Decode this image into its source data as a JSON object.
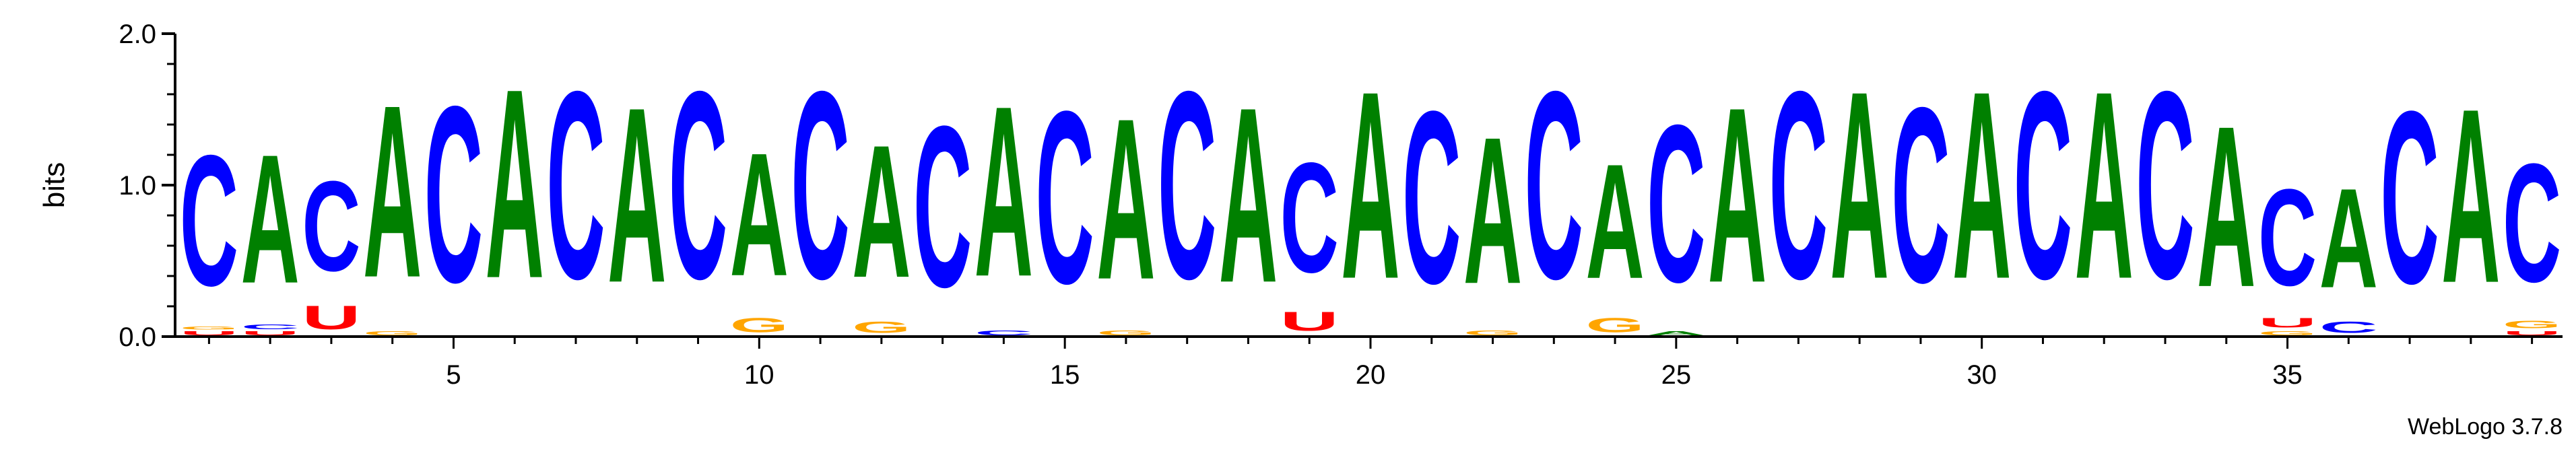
{
  "chart_data": {
    "type": "sequence_logo",
    "ylabel": "bits",
    "ylim": [
      0,
      2.0
    ],
    "y_ticks": [
      "0.0",
      "1.0",
      "2.0"
    ],
    "x_ticks": [
      5,
      10,
      15,
      20,
      25,
      30,
      35
    ],
    "num_positions": 39,
    "colors": {
      "A": "#008000",
      "C": "#0000ff",
      "G": "#ffa500",
      "U": "#ff0000"
    },
    "positions": [
      {
        "pos": 1,
        "stack": [
          {
            "l": "U",
            "h": 0.04
          },
          {
            "l": "G",
            "h": 0.03
          },
          {
            "l": "C",
            "h": 1.38
          }
        ]
      },
      {
        "pos": 2,
        "stack": [
          {
            "l": "U",
            "h": 0.04
          },
          {
            "l": "C",
            "h": 0.05
          },
          {
            "l": "A",
            "h": 1.36
          }
        ]
      },
      {
        "pos": 3,
        "stack": [
          {
            "l": "U",
            "h": 0.25
          },
          {
            "l": "C",
            "h": 0.95
          }
        ]
      },
      {
        "pos": 4,
        "stack": [
          {
            "l": "G",
            "h": 0.04
          },
          {
            "l": "A",
            "h": 1.82
          }
        ]
      },
      {
        "pos": 5,
        "stack": [
          {
            "l": "C",
            "h": 1.86
          }
        ]
      },
      {
        "pos": 6,
        "stack": [
          {
            "l": "A",
            "h": 2.0
          }
        ]
      },
      {
        "pos": 7,
        "stack": [
          {
            "l": "C",
            "h": 1.98
          }
        ]
      },
      {
        "pos": 8,
        "stack": [
          {
            "l": "A",
            "h": 1.85
          }
        ]
      },
      {
        "pos": 9,
        "stack": [
          {
            "l": "C",
            "h": 1.98
          }
        ]
      },
      {
        "pos": 10,
        "stack": [
          {
            "l": "G",
            "h": 0.15
          },
          {
            "l": "A",
            "h": 1.3
          }
        ]
      },
      {
        "pos": 11,
        "stack": [
          {
            "l": "C",
            "h": 1.98
          }
        ]
      },
      {
        "pos": 12,
        "stack": [
          {
            "l": "G",
            "h": 0.12
          },
          {
            "l": "A",
            "h": 1.4
          }
        ]
      },
      {
        "pos": 13,
        "stack": [
          {
            "l": "C",
            "h": 1.7
          }
        ]
      },
      {
        "pos": 14,
        "stack": [
          {
            "l": "C",
            "h": 0.05
          },
          {
            "l": "A",
            "h": 1.8
          }
        ]
      },
      {
        "pos": 15,
        "stack": [
          {
            "l": "C",
            "h": 1.82
          }
        ]
      },
      {
        "pos": 16,
        "stack": [
          {
            "l": "G",
            "h": 0.05
          },
          {
            "l": "A",
            "h": 1.7
          }
        ]
      },
      {
        "pos": 17,
        "stack": [
          {
            "l": "C",
            "h": 1.98
          }
        ]
      },
      {
        "pos": 18,
        "stack": [
          {
            "l": "A",
            "h": 1.85
          }
        ]
      },
      {
        "pos": 19,
        "stack": [
          {
            "l": "U",
            "h": 0.2
          },
          {
            "l": "C",
            "h": 1.16
          }
        ]
      },
      {
        "pos": 20,
        "stack": [
          {
            "l": "A",
            "h": 1.98
          }
        ]
      },
      {
        "pos": 21,
        "stack": [
          {
            "l": "C",
            "h": 1.82
          }
        ]
      },
      {
        "pos": 22,
        "stack": [
          {
            "l": "G",
            "h": 0.05
          },
          {
            "l": "A",
            "h": 1.55
          }
        ]
      },
      {
        "pos": 23,
        "stack": [
          {
            "l": "C",
            "h": 1.98
          }
        ]
      },
      {
        "pos": 24,
        "stack": [
          {
            "l": "G",
            "h": 0.15
          },
          {
            "l": "A",
            "h": 1.21
          }
        ]
      },
      {
        "pos": 25,
        "stack": [
          {
            "l": "A",
            "h": 0.04
          },
          {
            "l": "C",
            "h": 1.66
          }
        ]
      },
      {
        "pos": 26,
        "stack": [
          {
            "l": "A",
            "h": 1.85
          }
        ]
      },
      {
        "pos": 27,
        "stack": [
          {
            "l": "C",
            "h": 1.98
          }
        ]
      },
      {
        "pos": 28,
        "stack": [
          {
            "l": "A",
            "h": 1.98
          }
        ]
      },
      {
        "pos": 29,
        "stack": [
          {
            "l": "C",
            "h": 1.85
          }
        ]
      },
      {
        "pos": 30,
        "stack": [
          {
            "l": "A",
            "h": 1.98
          }
        ]
      },
      {
        "pos": 31,
        "stack": [
          {
            "l": "C",
            "h": 1.98
          }
        ]
      },
      {
        "pos": 32,
        "stack": [
          {
            "l": "A",
            "h": 1.98
          }
        ]
      },
      {
        "pos": 33,
        "stack": [
          {
            "l": "C",
            "h": 1.98
          }
        ]
      },
      {
        "pos": 34,
        "stack": [
          {
            "l": "A",
            "h": 1.7
          }
        ]
      },
      {
        "pos": 35,
        "stack": [
          {
            "l": "G",
            "h": 0.04
          },
          {
            "l": "U",
            "h": 0.1
          },
          {
            "l": "C",
            "h": 1.02
          }
        ]
      },
      {
        "pos": 36,
        "stack": [
          {
            "l": "C",
            "h": 0.12
          },
          {
            "l": "A",
            "h": 1.05
          }
        ]
      },
      {
        "pos": 37,
        "stack": [
          {
            "l": "C",
            "h": 1.82
          }
        ]
      },
      {
        "pos": 38,
        "stack": [
          {
            "l": "A",
            "h": 1.84
          }
        ]
      },
      {
        "pos": 39,
        "stack": [
          {
            "l": "U",
            "h": 0.04
          },
          {
            "l": "G",
            "h": 0.08
          },
          {
            "l": "C",
            "h": 1.25
          }
        ]
      }
    ]
  },
  "footer": {
    "version_label": "WebLogo 3.7.8"
  }
}
